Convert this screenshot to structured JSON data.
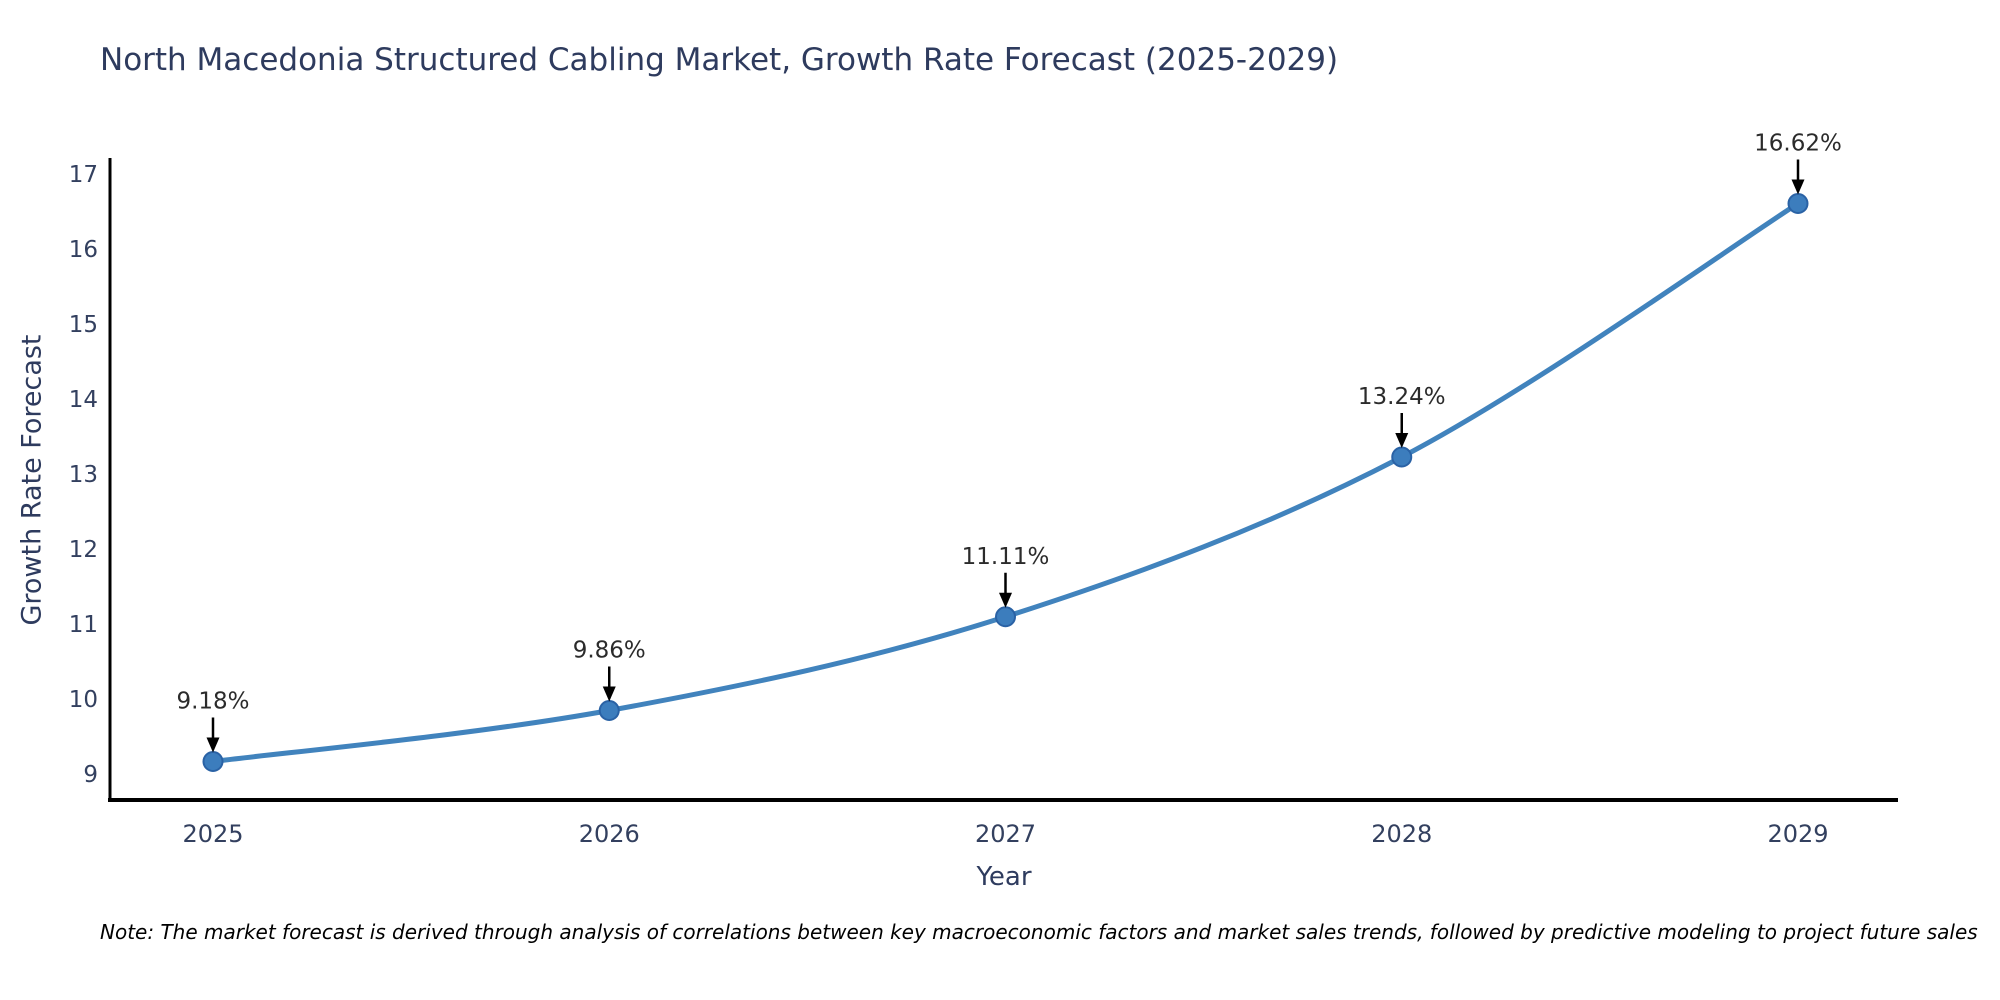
{
  "chart": {
    "title": "North Macedonia Structured Cabling Market, Growth Rate Forecast (2025-2029)",
    "ylabel": "Growth Rate Forecast",
    "xlabel": "Year",
    "note": "Note: The market forecast is derived through analysis of correlations between key macroeconomic factors and market sales trends, followed by predictive modeling to project future sales"
  },
  "chart_data": {
    "type": "line",
    "categories": [
      "2025",
      "2026",
      "2027",
      "2028",
      "2029"
    ],
    "values": [
      9.18,
      9.86,
      11.11,
      13.24,
      16.62
    ],
    "point_labels": [
      "9.18%",
      "9.86%",
      "11.11%",
      "13.24%",
      "16.62%"
    ],
    "title": "North Macedonia Structured Cabling Market, Growth Rate Forecast (2025-2029)",
    "xlabel": "Year",
    "ylabel": "Growth Rate Forecast",
    "ylim": [
      9,
      17
    ],
    "yticks": [
      9,
      10,
      11,
      12,
      13,
      14,
      15,
      16,
      17
    ],
    "grid": false,
    "legend": "none",
    "smooth": true,
    "colors": {
      "line": "#4183bd",
      "marker_fill": "#3c7dbd",
      "marker_edge": "#2a62a5",
      "annotation_text": "#2b2b2b",
      "annotation_arrow": "#000000",
      "axis_line": "#000000",
      "tick_label": "#33405f",
      "title_text": "#2e3b5e"
    }
  }
}
